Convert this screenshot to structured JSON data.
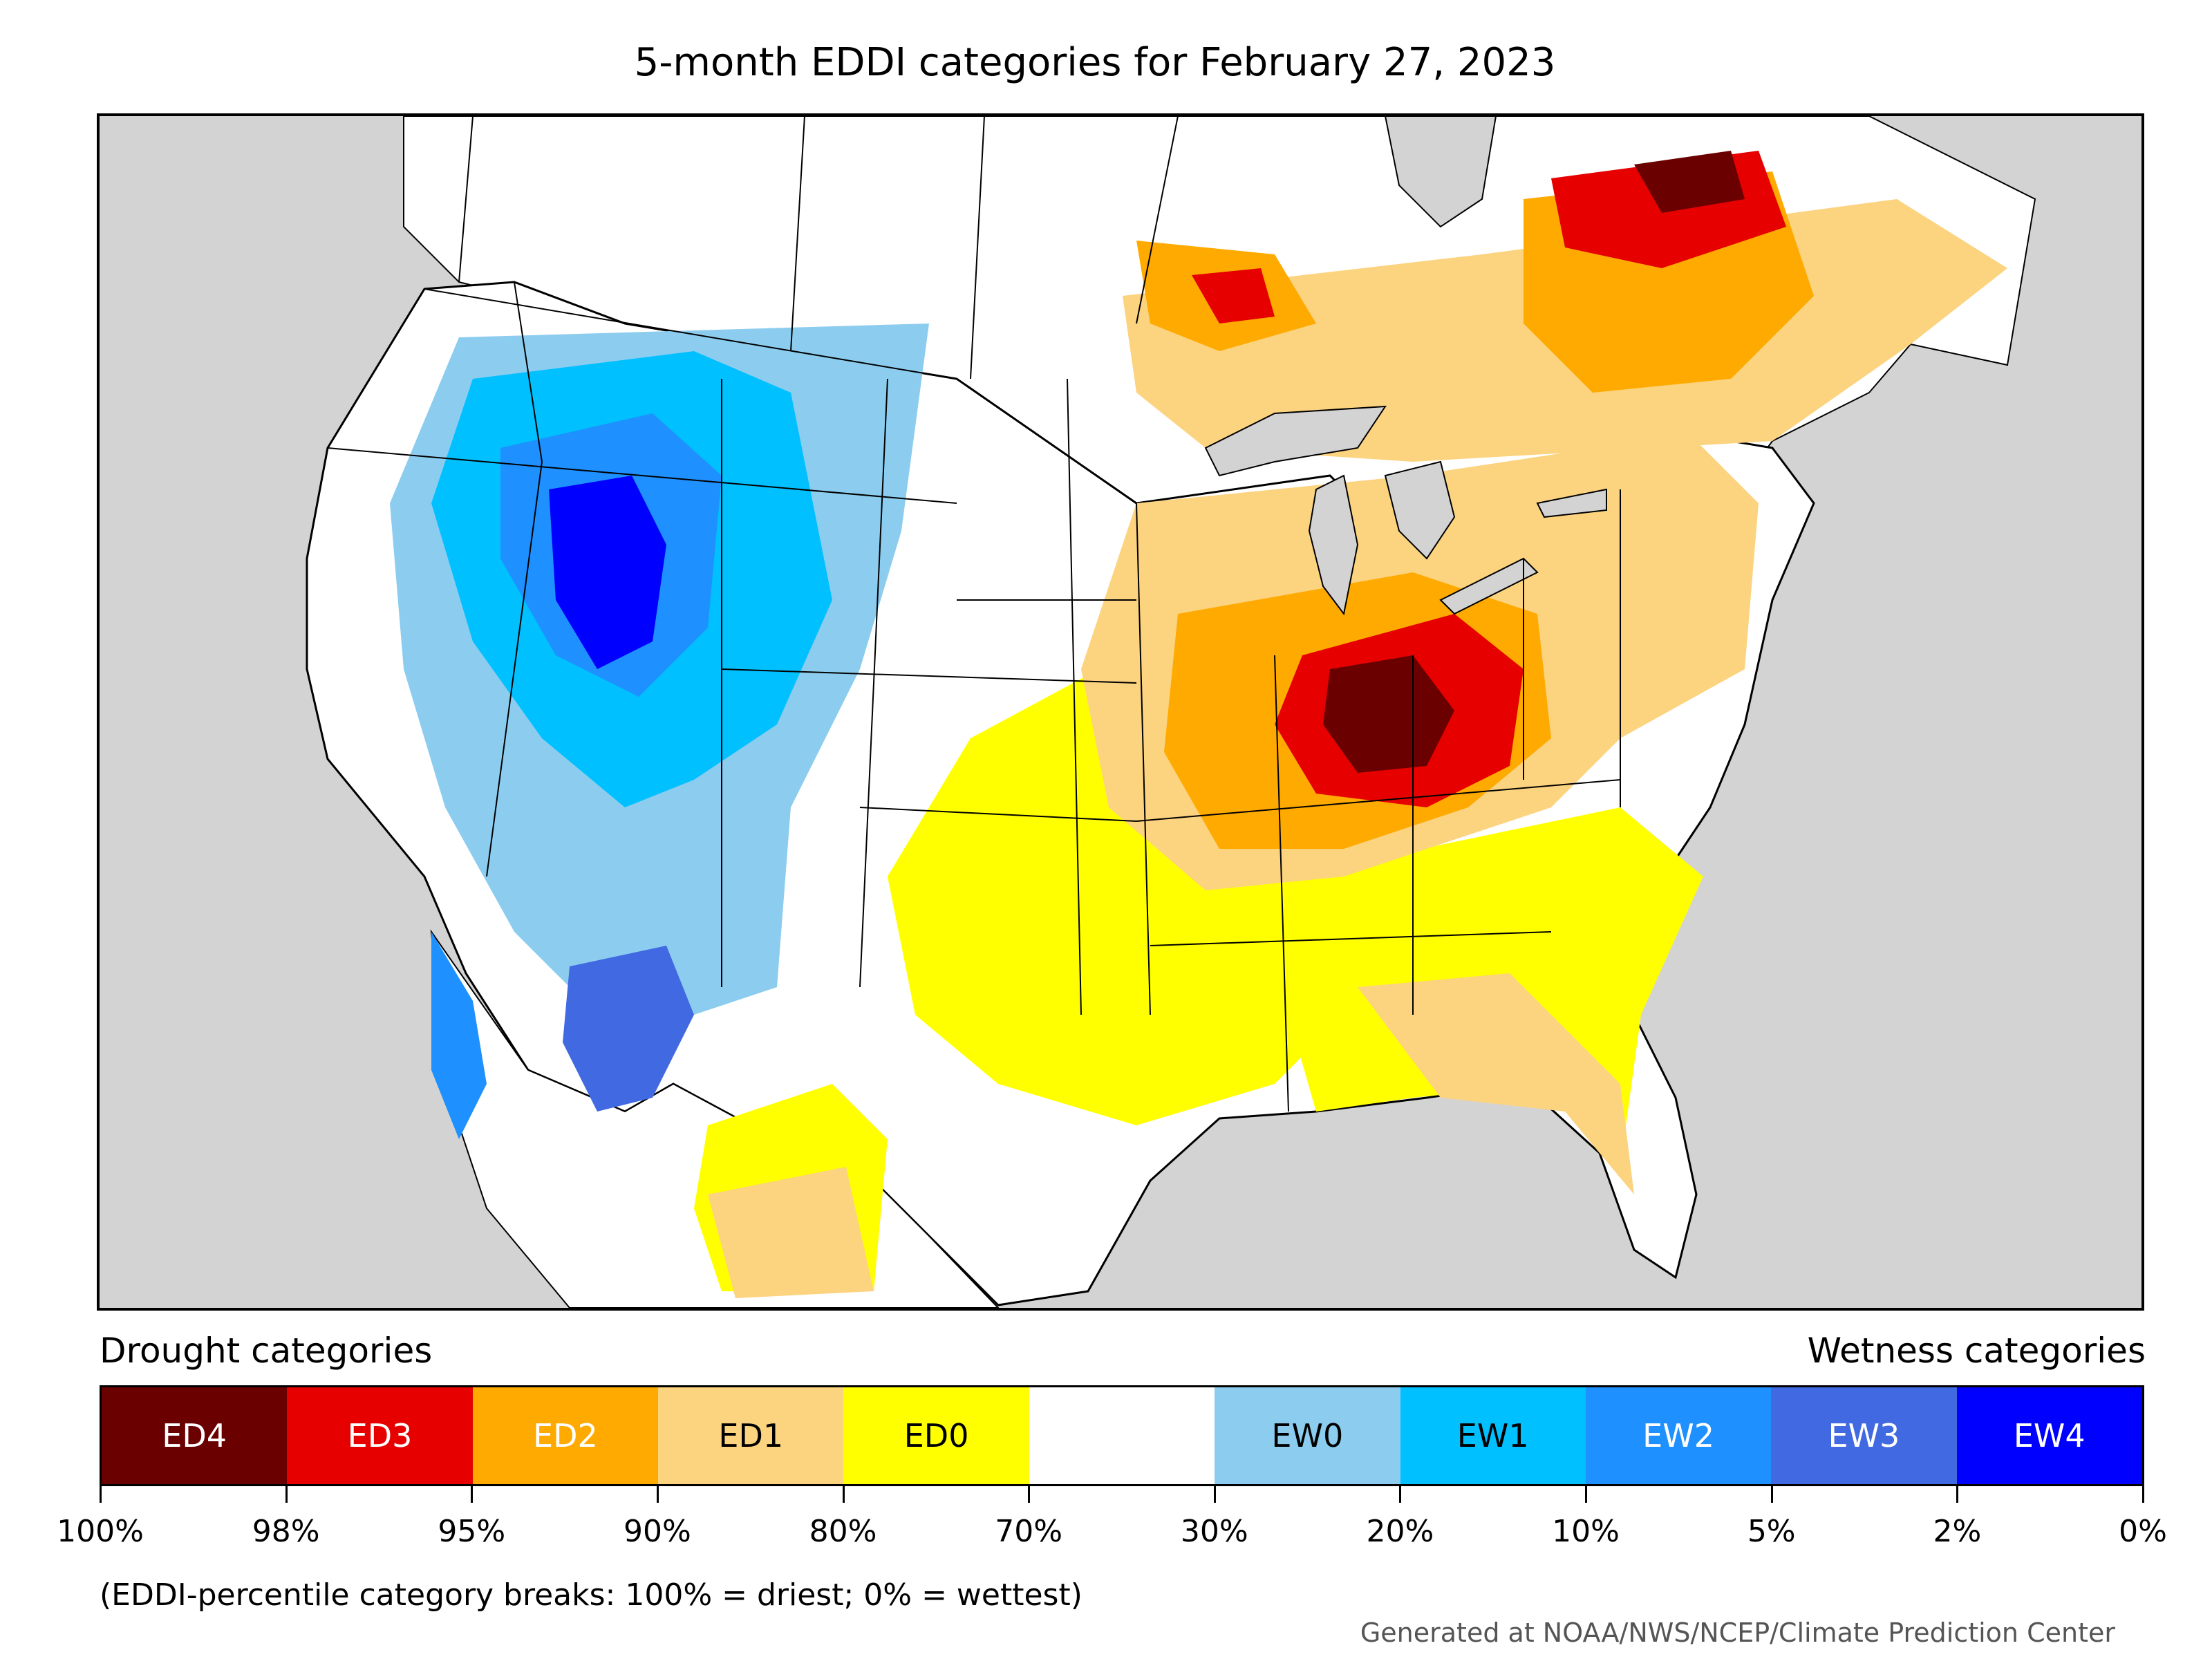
{
  "title": "5-month EDDI categories for February 27, 2023",
  "legend": {
    "drought_heading": "Drought categories",
    "wetness_heading": "Wetness categories",
    "categories": [
      {
        "label": "ED4",
        "color": "#6b0000",
        "text_color": "#ffffff"
      },
      {
        "label": "ED3",
        "color": "#e60000",
        "text_color": "#ffffff"
      },
      {
        "label": "ED2",
        "color": "#ffaa00",
        "text_color": "#ffffff"
      },
      {
        "label": "ED1",
        "color": "#fcd37f",
        "text_color": "#000000"
      },
      {
        "label": "ED0",
        "color": "#ffff00",
        "text_color": "#000000"
      },
      {
        "label": "",
        "color": "#ffffff",
        "text_color": "#000000"
      },
      {
        "label": "EW0",
        "color": "#8ccdef",
        "text_color": "#000000"
      },
      {
        "label": "EW1",
        "color": "#00c0ff",
        "text_color": "#000000"
      },
      {
        "label": "EW2",
        "color": "#1e90ff",
        "text_color": "#ffffff"
      },
      {
        "label": "EW3",
        "color": "#4169e1",
        "text_color": "#ffffff"
      },
      {
        "label": "EW4",
        "color": "#0000ff",
        "text_color": "#ffffff"
      }
    ],
    "tick_labels": [
      "100%",
      "98%",
      "95%",
      "90%",
      "80%",
      "70%",
      "30%",
      "20%",
      "10%",
      "5%",
      "2%",
      "0%"
    ]
  },
  "footnote": "(EDDI-percentile category breaks: 100% = driest; 0% = wettest)",
  "credit": "Generated at NOAA/NWS/NCEP/Climate Prediction Center",
  "map_colors": {
    "background": "#d3d3d3",
    "land": "#ffffff"
  }
}
